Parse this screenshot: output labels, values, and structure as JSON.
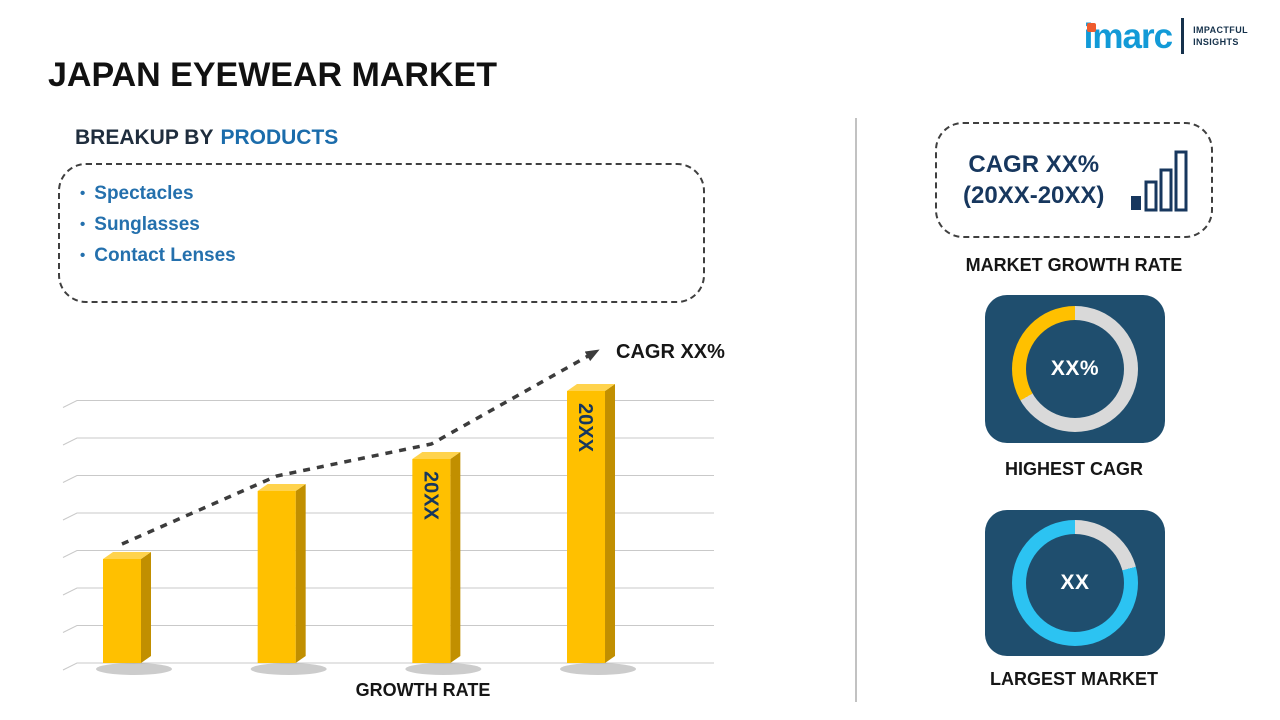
{
  "page": {
    "title": "JAPAN EYEWEAR MARKET"
  },
  "logo": {
    "brand": "imarc",
    "tagline": [
      "IMPACTFUL",
      "INSIGHTS"
    ],
    "brand_color": "#129AD7",
    "dot_color": "#EE5B2E"
  },
  "breakup": {
    "heading_prefix": "BREAKUP BY",
    "heading_highlight": "PRODUCTS",
    "items": [
      "Spectacles",
      "Sunglasses",
      "Contact Lenses"
    ]
  },
  "chart_data": {
    "type": "bar",
    "title": "",
    "categories": [
      "",
      "",
      "20XX",
      "20XX"
    ],
    "values": [
      26,
      43,
      51,
      68
    ],
    "ylim": [
      0,
      82
    ],
    "xlabel": "GROWTH RATE",
    "trend_label": "CAGR XX%",
    "grid": true,
    "legend": false,
    "bar_color": "#FFC000",
    "bar_side_color": "#C18F00",
    "bar_top_color": "#FFD34D",
    "bar_label_color": "#17375E",
    "trend_color": "#3C3C3C"
  },
  "sidebar": {
    "cagr_card": {
      "line1": "CAGR XX%",
      "line2": "(20XX-20XX)"
    },
    "market_growth_label": "MARKET GROWTH RATE",
    "highest_cagr": {
      "value": "XX%",
      "label": "HIGHEST CAGR",
      "accent": "#FFC000",
      "ring_split_deg": 240
    },
    "largest_market": {
      "value": "XX",
      "label": "LARGEST MARKET",
      "accent": "#2CC3F2",
      "ring_split_deg": 75
    },
    "tile_bg": "#1F4E6E",
    "ring_gray": "#D9D9D9"
  },
  "colors": {
    "heading_dark": "#1F2D3D",
    "accent_blue": "#1B6CAB",
    "navy": "#17375E",
    "divider": "#C2C2C2"
  }
}
